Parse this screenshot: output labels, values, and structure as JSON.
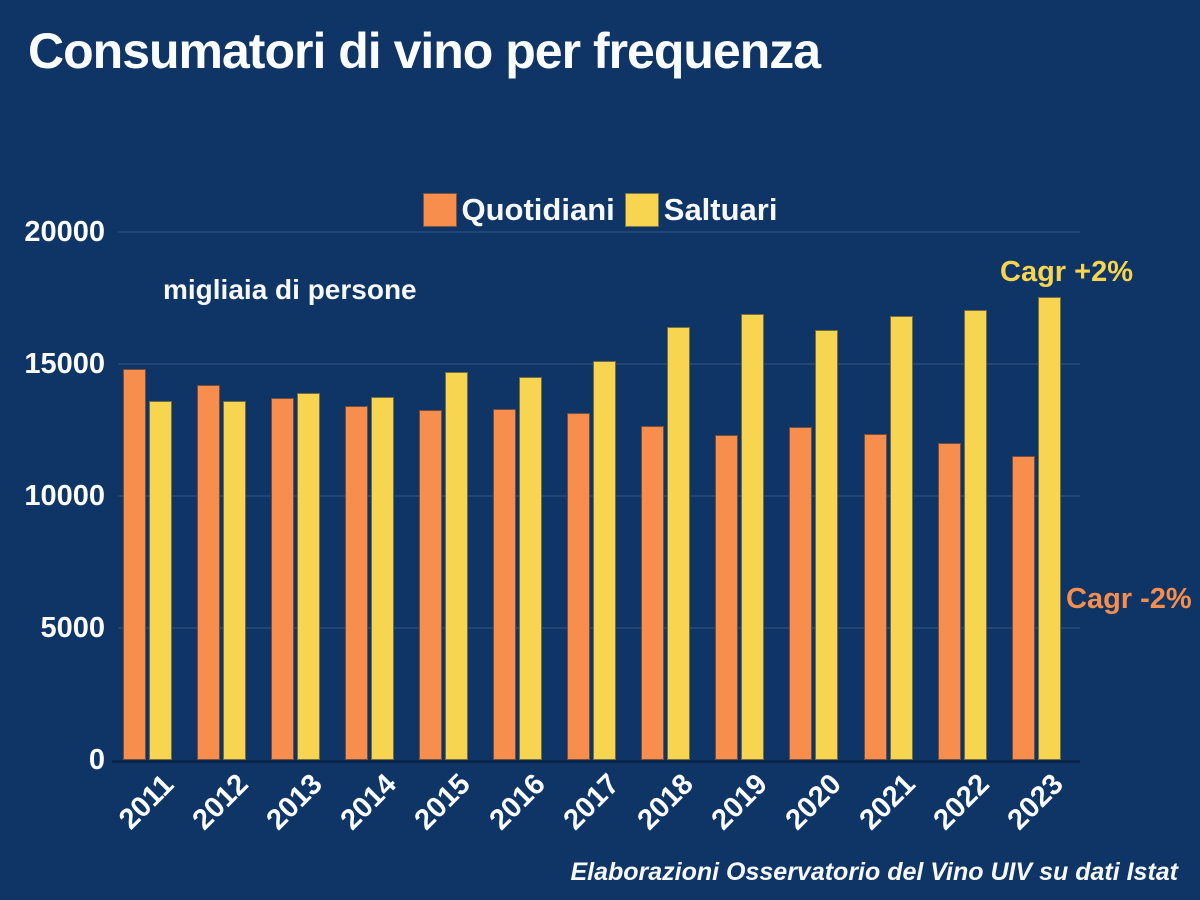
{
  "page": {
    "title": "Consumatori di vino per frequenza",
    "unit_label": "migliaia di persone",
    "source": "Elaborazioni Osservatorio del Vino UIV su dati Istat"
  },
  "colors": {
    "background": "#0e3565",
    "quotidiani": "#f78e4d",
    "saltuari": "#f8d550",
    "text": "#fbfcfe"
  },
  "legend": {
    "items": [
      {
        "label": "Quotidiani",
        "color": "#f78e4d"
      },
      {
        "label": "Saltuari",
        "color": "#f8d550"
      }
    ]
  },
  "annotations": {
    "cagr_saltuari": {
      "text": "Cagr +2%",
      "color": "#f8d550"
    },
    "cagr_quotidiani": {
      "text": "Cagr -2%",
      "color": "#f78e4d"
    }
  },
  "chart_data": {
    "type": "bar",
    "title": "Consumatori di vino per frequenza",
    "ylabel": "migliaia di persone",
    "categories": [
      "2011",
      "2012",
      "2013",
      "2014",
      "2015",
      "2016",
      "2017",
      "2018",
      "2019",
      "2020",
      "2021",
      "2022",
      "2023"
    ],
    "series": [
      {
        "name": "Quotidiani",
        "color": "#f78e4d",
        "values": [
          14800,
          14200,
          13700,
          13400,
          13250,
          13300,
          13150,
          12650,
          12300,
          12600,
          12350,
          12000,
          11500
        ]
      },
      {
        "name": "Saltuari",
        "color": "#f8d550",
        "values": [
          13600,
          13600,
          13900,
          13750,
          14700,
          14500,
          15100,
          16400,
          16900,
          16300,
          16800,
          17050,
          17550
        ]
      }
    ],
    "ylim": [
      0,
      20000
    ],
    "yticks": [
      0,
      5000,
      10000,
      15000,
      20000
    ],
    "grid": true,
    "legend_position": "top-center",
    "annotations": [
      "Cagr +2% (Saltuari)",
      "Cagr -2% (Quotidiani)"
    ]
  }
}
